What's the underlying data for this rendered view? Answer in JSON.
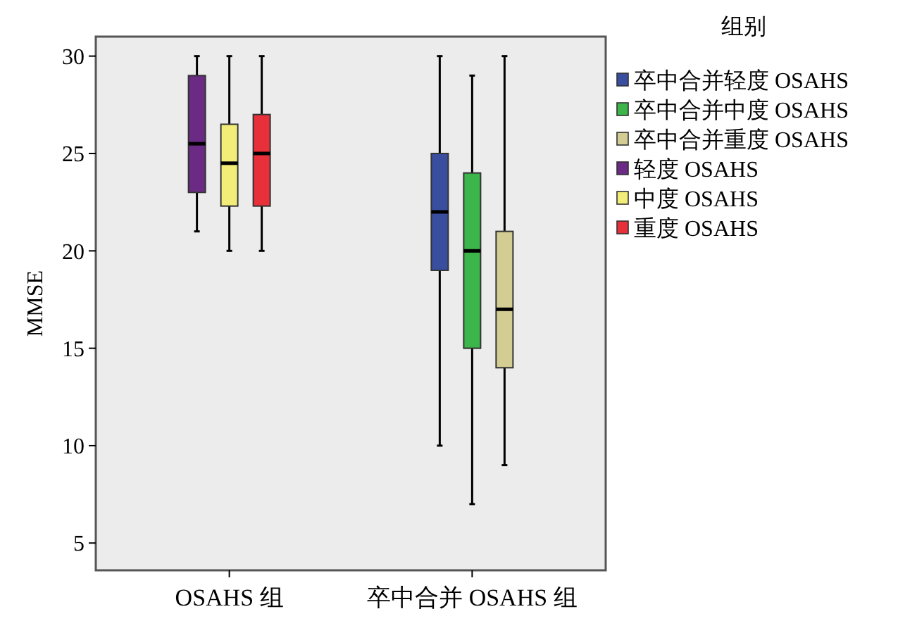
{
  "chart_data": {
    "type": "box",
    "ylabel": "MMSE",
    "legend_title": "组别",
    "legend": "right",
    "categories": [
      "OSAHS 组",
      "卒中合并 OSAHS 组"
    ],
    "ylim": [
      3.6,
      31
    ],
    "yticks": [
      5,
      10,
      15,
      20,
      25,
      30
    ],
    "grid": false,
    "series": [
      {
        "name": "卒中合并轻度 OSAHS",
        "color": "#3a4ea0",
        "boxes": [
          null,
          {
            "low": 10,
            "q1": 19,
            "median": 22,
            "q3": 25,
            "high": 30
          }
        ]
      },
      {
        "name": "卒中合并中度 OSAHS",
        "color": "#3cb54a",
        "boxes": [
          null,
          {
            "low": 7,
            "q1": 15,
            "median": 20,
            "q3": 24,
            "high": 29
          }
        ]
      },
      {
        "name": "卒中合并重度 OSAHS",
        "color": "#d3cd93",
        "boxes": [
          null,
          {
            "low": 9,
            "q1": 14,
            "median": 17,
            "q3": 21,
            "high": 30
          }
        ]
      },
      {
        "name": "轻度 OSAHS",
        "color": "#6b2a83",
        "boxes": [
          {
            "low": 21,
            "q1": 23,
            "median": 25.5,
            "q3": 29,
            "high": 30
          },
          null
        ]
      },
      {
        "name": "中度 OSAHS",
        "color": "#f2ec78",
        "boxes": [
          {
            "low": 20,
            "q1": 22.3,
            "median": 24.5,
            "q3": 26.5,
            "high": 30
          },
          null
        ]
      },
      {
        "name": "重度 OSAHS",
        "color": "#e8303a",
        "boxes": [
          {
            "low": 20,
            "q1": 22.3,
            "median": 25,
            "q3": 27,
            "high": 30
          },
          null
        ]
      }
    ]
  }
}
